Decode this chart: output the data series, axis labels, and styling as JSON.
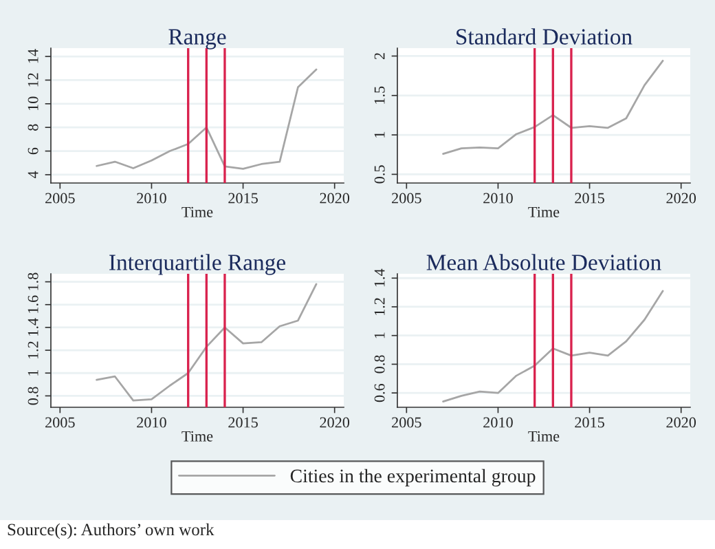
{
  "chart_data": [
    {
      "type": "line",
      "title": "Range",
      "xlabel": "Time",
      "x": [
        2007,
        2008,
        2009,
        2010,
        2011,
        2012,
        2013,
        2014,
        2015,
        2016,
        2017,
        2018,
        2019
      ],
      "series": [
        {
          "name": "Cities in the experimental group",
          "color": "#a6a6a6",
          "values": [
            4.74,
            5.1,
            4.55,
            5.2,
            6.0,
            6.6,
            8.0,
            4.7,
            4.5,
            4.9,
            5.1,
            11.4,
            12.9
          ]
        }
      ],
      "xlim": [
        2004.5,
        2020.5
      ],
      "xticks": [
        2005,
        2010,
        2015,
        2020
      ],
      "ylim": [
        3.3,
        14.7
      ],
      "yticks": [
        4,
        6,
        8,
        10,
        12,
        14
      ],
      "grid": "y",
      "legend": "bottom",
      "ref_lines": [
        {
          "axis": "x",
          "value": 2012,
          "color": "#d9224e"
        },
        {
          "axis": "x",
          "value": 2013,
          "color": "#d9224e"
        },
        {
          "axis": "x",
          "value": 2014,
          "color": "#d9224e"
        }
      ],
      "annotations": [
        "Source(s): Authors’ own work"
      ]
    },
    {
      "type": "line",
      "title": "Standard Deviation",
      "xlabel": "Time",
      "x": [
        2007,
        2008,
        2009,
        2010,
        2011,
        2012,
        2013,
        2014,
        2015,
        2016,
        2017,
        2018,
        2019
      ],
      "series": [
        {
          "color": "#a6a6a6",
          "values": [
            0.76,
            0.83,
            0.84,
            0.83,
            1.01,
            1.1,
            1.25,
            1.09,
            1.11,
            1.09,
            1.21,
            1.63,
            1.94
          ]
        }
      ],
      "xlim": [
        2004.5,
        2020.5
      ],
      "xticks": [
        2005,
        2010,
        2015,
        2020
      ],
      "ylim": [
        0.39,
        2.1
      ],
      "yticks": [
        0.5,
        1,
        1.5,
        2
      ],
      "grid": "y",
      "ref_lines": [
        {
          "axis": "x",
          "value": 2012,
          "color": "#d9224e"
        },
        {
          "axis": "x",
          "value": 2013,
          "color": "#d9224e"
        },
        {
          "axis": "x",
          "value": 2014,
          "color": "#d9224e"
        }
      ]
    },
    {
      "type": "line",
      "title": "Interquartile Range",
      "xlabel": "Time",
      "x": [
        2007,
        2008,
        2009,
        2010,
        2011,
        2012,
        2013,
        2014,
        2015,
        2016,
        2017,
        2018,
        2019
      ],
      "series": [
        {
          "color": "#a6a6a6",
          "values": [
            0.94,
            0.97,
            0.76,
            0.77,
            0.89,
            1.0,
            1.23,
            1.4,
            1.26,
            1.27,
            1.41,
            1.46,
            1.78
          ]
        }
      ],
      "xlim": [
        2004.5,
        2020.5
      ],
      "xticks": [
        2005,
        2010,
        2015,
        2020
      ],
      "ylim": [
        0.7,
        1.87
      ],
      "yticks": [
        0.8,
        1,
        1.2,
        1.4,
        1.6,
        1.8
      ],
      "grid": "y",
      "ref_lines": [
        {
          "axis": "x",
          "value": 2012,
          "color": "#d9224e"
        },
        {
          "axis": "x",
          "value": 2013,
          "color": "#d9224e"
        },
        {
          "axis": "x",
          "value": 2014,
          "color": "#d9224e"
        }
      ]
    },
    {
      "type": "line",
      "title": "Mean Absolute Deviation",
      "xlabel": "Time",
      "x": [
        2007,
        2008,
        2009,
        2010,
        2011,
        2012,
        2013,
        2014,
        2015,
        2016,
        2017,
        2018,
        2019
      ],
      "series": [
        {
          "color": "#a6a6a6",
          "values": [
            0.54,
            0.58,
            0.61,
            0.6,
            0.72,
            0.79,
            0.91,
            0.86,
            0.88,
            0.86,
            0.96,
            1.11,
            1.31
          ]
        }
      ],
      "xlim": [
        2004.5,
        2020.5
      ],
      "xticks": [
        2005,
        2010,
        2015,
        2020
      ],
      "ylim": [
        0.5,
        1.43
      ],
      "yticks": [
        0.6,
        0.8,
        1,
        1.2,
        1.4
      ],
      "grid": "y",
      "ref_lines": [
        {
          "axis": "x",
          "value": 2012,
          "color": "#d9224e"
        },
        {
          "axis": "x",
          "value": 2013,
          "color": "#d9224e"
        },
        {
          "axis": "x",
          "value": 2014,
          "color": "#d9224e"
        }
      ]
    }
  ]
}
